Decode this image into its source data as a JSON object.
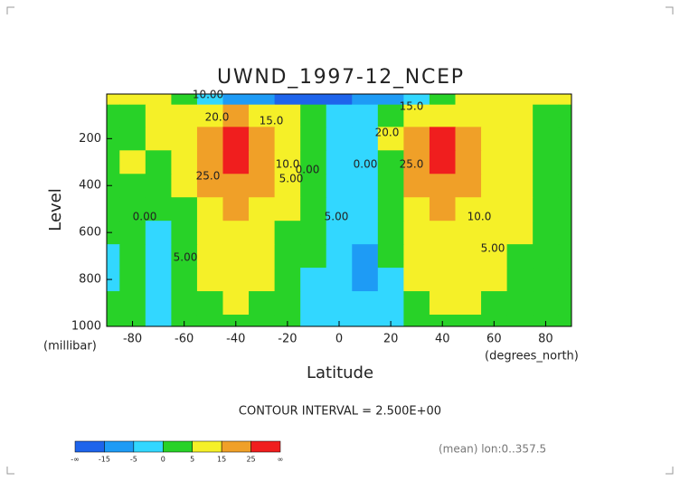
{
  "chart_data": {
    "type": "contourf",
    "title": "UWND_1997-12_NCEP",
    "x_label": "Latitude",
    "y_label": "Level",
    "x_unit": "(degrees_north)",
    "y_unit": "(millibar)",
    "note": "CONTOUR INTERVAL = 2.500E+00",
    "subnote": "(mean) lon:0..357.5",
    "x": [
      -90,
      -80,
      -70,
      -60,
      -50,
      -40,
      -30,
      -20,
      -10,
      0,
      10,
      20,
      30,
      40,
      50,
      60,
      70,
      80,
      90
    ],
    "levels": [
      10,
      100,
      200,
      300,
      400,
      500,
      600,
      700,
      800,
      900,
      1000
    ],
    "z": [
      [
        5,
        5,
        5,
        0,
        -5,
        -10,
        -15,
        -20,
        -20,
        -20,
        -15,
        -10,
        -5,
        0,
        5,
        5,
        5,
        5,
        5
      ],
      [
        3,
        4,
        6,
        8,
        12,
        15,
        10,
        5,
        0,
        -3,
        -3,
        3,
        12,
        14,
        10,
        8,
        6,
        4,
        3
      ],
      [
        2,
        4,
        6,
        10,
        22,
        28,
        20,
        8,
        2,
        -2,
        -2,
        5,
        22,
        30,
        18,
        10,
        6,
        4,
        2
      ],
      [
        2,
        5,
        4,
        8,
        22,
        28,
        20,
        8,
        2,
        -2,
        -3,
        4,
        20,
        28,
        18,
        10,
        6,
        4,
        2
      ],
      [
        2,
        4,
        2,
        6,
        18,
        24,
        16,
        6,
        1,
        -3,
        -4,
        3,
        16,
        22,
        16,
        10,
        6,
        3,
        2
      ],
      [
        1,
        2,
        1,
        4,
        14,
        18,
        12,
        5,
        1,
        -3,
        -5,
        2,
        12,
        17,
        14,
        9,
        5,
        3,
        1
      ],
      [
        0,
        1,
        -1,
        3,
        11,
        14,
        9,
        4,
        0,
        -3,
        -5,
        1,
        9,
        13,
        11,
        8,
        5,
        3,
        1
      ],
      [
        -1,
        1,
        -2,
        2,
        8,
        11,
        7,
        3,
        0,
        -3,
        -6,
        0,
        7,
        10,
        9,
        6,
        4,
        2,
        1
      ],
      [
        -1,
        0,
        -2,
        1,
        6,
        8,
        5,
        2,
        -1,
        -3,
        -6,
        -1,
        5,
        8,
        7,
        5,
        3,
        2,
        1
      ],
      [
        0,
        1,
        -2,
        1,
        4,
        6,
        4,
        1,
        -1,
        -3,
        -5,
        -1,
        4,
        6,
        6,
        4,
        3,
        2,
        1
      ],
      [
        0,
        1,
        -1,
        1,
        3,
        4,
        3,
        1,
        -1,
        -2,
        -4,
        -1,
        2,
        4,
        4,
        3,
        2,
        1,
        1
      ]
    ],
    "xlim": [
      -90,
      90
    ],
    "ylim": [
      1000,
      10
    ],
    "xticks": [
      -80,
      -60,
      -40,
      -20,
      0,
      20,
      40,
      60,
      80
    ],
    "yticks": [
      200,
      400,
      600,
      800,
      1000
    ],
    "colorbar": {
      "ticks": [
        "-∞",
        -15,
        -5,
        0,
        5,
        15,
        25,
        "∞"
      ],
      "colors": [
        "#1e64eb",
        "#1e9bf5",
        "#32d7ff",
        "#28d228",
        "#f5f028",
        "#f0a028",
        "#f01e1e"
      ]
    },
    "annotations": [
      "10.00",
      "20.0",
      "15.0",
      "25.0",
      "10.0",
      "5.00",
      "0.00",
      "0.00",
      "5.00",
      "20.0",
      "15.0",
      "25.0",
      "10.0",
      "5.00",
      "0.00",
      "5.00"
    ]
  }
}
